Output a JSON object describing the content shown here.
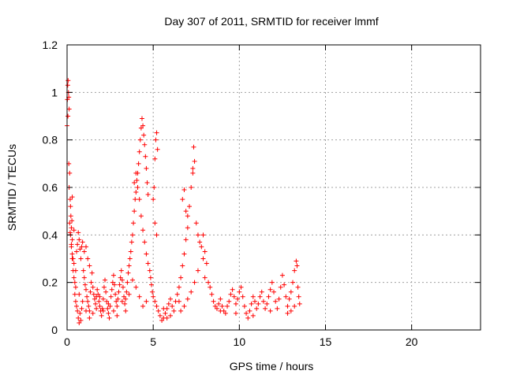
{
  "chart_data": {
    "type": "scatter",
    "title": "Day 307 of 2011, SRMTID for receiver lmmf",
    "xlabel": "GPS time / hours",
    "ylabel": "SRMTID / TECUs",
    "xlim": [
      0,
      24
    ],
    "ylim": [
      0,
      1.2
    ],
    "xticks": [
      0,
      5,
      10,
      15,
      20
    ],
    "yticks": [
      0,
      0.2,
      0.4,
      0.6,
      0.8,
      1,
      1.2
    ],
    "xtick_labels": [
      "0",
      "5",
      "10",
      "15",
      "20"
    ],
    "ytick_labels": [
      "0",
      "0.2",
      "0.4",
      "0.6",
      "0.8",
      "1",
      "1.2"
    ],
    "grid": true,
    "marker": "plus",
    "color": "#ff0000",
    "points": [
      [
        0.0,
        0.86
      ],
      [
        0.02,
        0.97
      ],
      [
        0.04,
        1.03
      ],
      [
        0.06,
        1.05
      ],
      [
        0.08,
        1.0
      ],
      [
        0.1,
        0.98
      ],
      [
        0.12,
        0.93
      ],
      [
        0.05,
        0.9
      ],
      [
        0.1,
        0.7
      ],
      [
        0.15,
        0.66
      ],
      [
        0.12,
        0.6
      ],
      [
        0.18,
        0.55
      ],
      [
        0.2,
        0.52
      ],
      [
        0.22,
        0.48
      ],
      [
        0.15,
        0.45
      ],
      [
        0.25,
        0.43
      ],
      [
        0.2,
        0.4
      ],
      [
        0.3,
        0.38
      ],
      [
        0.25,
        0.35
      ],
      [
        0.3,
        0.32
      ],
      [
        0.35,
        0.3
      ],
      [
        0.4,
        0.28
      ],
      [
        0.18,
        0.41
      ],
      [
        0.28,
        0.46
      ],
      [
        0.3,
        0.56
      ],
      [
        0.35,
        0.25
      ],
      [
        0.4,
        0.22
      ],
      [
        0.45,
        0.2
      ],
      [
        0.5,
        0.18
      ],
      [
        0.45,
        0.15
      ],
      [
        0.5,
        0.12
      ],
      [
        0.55,
        0.1
      ],
      [
        0.6,
        0.08
      ],
      [
        0.65,
        0.05
      ],
      [
        0.7,
        0.03
      ],
      [
        0.8,
        0.04
      ],
      [
        0.75,
        0.07
      ],
      [
        0.85,
        0.09
      ],
      [
        0.55,
        0.33
      ],
      [
        0.6,
        0.36
      ],
      [
        0.65,
        0.41
      ],
      [
        0.7,
        0.38
      ],
      [
        0.75,
        0.34
      ],
      [
        0.8,
        0.3
      ],
      [
        0.85,
        0.35
      ],
      [
        0.9,
        0.37
      ],
      [
        1.0,
        0.33
      ],
      [
        1.1,
        0.35
      ],
      [
        1.2,
        0.3
      ],
      [
        1.3,
        0.27
      ],
      [
        0.95,
        0.25
      ],
      [
        1.0,
        0.22
      ],
      [
        1.05,
        0.19
      ],
      [
        1.1,
        0.17
      ],
      [
        1.15,
        0.14
      ],
      [
        1.2,
        0.12
      ],
      [
        1.25,
        0.1
      ],
      [
        1.3,
        0.08
      ],
      [
        1.35,
        0.16
      ],
      [
        1.4,
        0.2
      ],
      [
        1.45,
        0.24
      ],
      [
        1.5,
        0.18
      ],
      [
        1.55,
        0.15
      ],
      [
        1.6,
        0.13
      ],
      [
        1.65,
        0.11
      ],
      [
        1.7,
        0.14
      ],
      [
        1.75,
        0.17
      ],
      [
        1.8,
        0.15
      ],
      [
        1.85,
        0.12
      ],
      [
        1.9,
        0.1
      ],
      [
        1.95,
        0.08
      ],
      [
        2.0,
        0.06
      ],
      [
        2.05,
        0.09
      ],
      [
        2.1,
        0.13
      ],
      [
        2.15,
        0.18
      ],
      [
        2.2,
        0.21
      ],
      [
        2.25,
        0.16
      ],
      [
        2.3,
        0.12
      ],
      [
        2.35,
        0.09
      ],
      [
        2.4,
        0.07
      ],
      [
        2.45,
        0.05
      ],
      [
        2.5,
        0.1
      ],
      [
        2.55,
        0.14
      ],
      [
        2.6,
        0.17
      ],
      [
        2.65,
        0.2
      ],
      [
        2.7,
        0.23
      ],
      [
        2.75,
        0.19
      ],
      [
        2.8,
        0.15
      ],
      [
        2.85,
        0.12
      ],
      [
        2.9,
        0.1
      ],
      [
        2.95,
        0.13
      ],
      [
        3.0,
        0.16
      ],
      [
        3.05,
        0.19
      ],
      [
        3.1,
        0.22
      ],
      [
        3.15,
        0.25
      ],
      [
        3.2,
        0.21
      ],
      [
        3.25,
        0.18
      ],
      [
        3.3,
        0.14
      ],
      [
        3.35,
        0.11
      ],
      [
        3.4,
        0.13
      ],
      [
        3.45,
        0.16
      ],
      [
        3.5,
        0.2
      ],
      [
        3.55,
        0.24
      ],
      [
        3.6,
        0.27
      ],
      [
        3.65,
        0.3
      ],
      [
        3.7,
        0.33
      ],
      [
        3.75,
        0.37
      ],
      [
        3.8,
        0.4
      ],
      [
        3.85,
        0.45
      ],
      [
        3.9,
        0.5
      ],
      [
        3.95,
        0.55
      ],
      [
        4.0,
        0.58
      ],
      [
        4.05,
        0.63
      ],
      [
        4.1,
        0.66
      ],
      [
        4.15,
        0.7
      ],
      [
        4.2,
        0.75
      ],
      [
        4.25,
        0.8
      ],
      [
        4.3,
        0.85
      ],
      [
        4.35,
        0.89
      ],
      [
        4.4,
        0.86
      ],
      [
        4.45,
        0.82
      ],
      [
        4.5,
        0.78
      ],
      [
        4.55,
        0.73
      ],
      [
        4.6,
        0.68
      ],
      [
        4.65,
        0.62
      ],
      [
        4.7,
        0.57
      ],
      [
        3.9,
        0.62
      ],
      [
        4.0,
        0.66
      ],
      [
        4.1,
        0.6
      ],
      [
        4.2,
        0.55
      ],
      [
        4.3,
        0.48
      ],
      [
        4.4,
        0.42
      ],
      [
        4.5,
        0.37
      ],
      [
        4.6,
        0.32
      ],
      [
        4.7,
        0.28
      ],
      [
        4.8,
        0.25
      ],
      [
        4.85,
        0.22
      ],
      [
        4.9,
        0.19
      ],
      [
        4.95,
        0.16
      ],
      [
        5.0,
        0.55
      ],
      [
        5.05,
        0.6
      ],
      [
        5.1,
        0.72
      ],
      [
        5.15,
        0.8
      ],
      [
        5.2,
        0.83
      ],
      [
        5.25,
        0.76
      ],
      [
        5.1,
        0.45
      ],
      [
        5.2,
        0.4
      ],
      [
        5.0,
        0.14
      ],
      [
        5.1,
        0.12
      ],
      [
        5.2,
        0.1
      ],
      [
        5.3,
        0.08
      ],
      [
        5.4,
        0.06
      ],
      [
        5.5,
        0.04
      ],
      [
        5.6,
        0.05
      ],
      [
        5.7,
        0.07
      ],
      [
        5.8,
        0.09
      ],
      [
        5.9,
        0.11
      ],
      [
        6.0,
        0.13
      ],
      [
        6.1,
        0.1
      ],
      [
        6.2,
        0.08
      ],
      [
        6.3,
        0.12
      ],
      [
        6.4,
        0.15
      ],
      [
        6.5,
        0.18
      ],
      [
        6.6,
        0.22
      ],
      [
        6.7,
        0.27
      ],
      [
        6.8,
        0.32
      ],
      [
        6.9,
        0.38
      ],
      [
        7.0,
        0.43
      ],
      [
        6.7,
        0.55
      ],
      [
        6.8,
        0.59
      ],
      [
        6.9,
        0.5
      ],
      [
        7.0,
        0.48
      ],
      [
        7.1,
        0.52
      ],
      [
        7.2,
        0.6
      ],
      [
        7.3,
        0.66
      ],
      [
        7.4,
        0.71
      ],
      [
        7.35,
        0.77
      ],
      [
        7.3,
        0.68
      ],
      [
        7.5,
        0.45
      ],
      [
        7.6,
        0.4
      ],
      [
        7.7,
        0.37
      ],
      [
        7.8,
        0.35
      ],
      [
        7.9,
        0.4
      ],
      [
        8.0,
        0.33
      ],
      [
        8.1,
        0.28
      ],
      [
        8.0,
        0.22
      ],
      [
        8.2,
        0.2
      ],
      [
        8.3,
        0.18
      ],
      [
        8.4,
        0.15
      ],
      [
        8.5,
        0.12
      ],
      [
        8.6,
        0.1
      ],
      [
        8.7,
        0.09
      ],
      [
        8.8,
        0.11
      ],
      [
        8.9,
        0.13
      ],
      [
        9.0,
        0.1
      ],
      [
        9.1,
        0.08
      ],
      [
        9.2,
        0.07
      ],
      [
        9.3,
        0.1
      ],
      [
        9.4,
        0.12
      ],
      [
        9.5,
        0.15
      ],
      [
        9.6,
        0.17
      ],
      [
        9.7,
        0.14
      ],
      [
        9.8,
        0.11
      ],
      [
        9.9,
        0.13
      ],
      [
        10.0,
        0.16
      ],
      [
        10.1,
        0.18
      ],
      [
        10.2,
        0.14
      ],
      [
        10.3,
        0.1
      ],
      [
        10.4,
        0.07
      ],
      [
        10.5,
        0.05
      ],
      [
        10.6,
        0.08
      ],
      [
        10.7,
        0.11
      ],
      [
        10.8,
        0.14
      ],
      [
        10.9,
        0.12
      ],
      [
        11.0,
        0.09
      ],
      [
        11.1,
        0.11
      ],
      [
        11.2,
        0.14
      ],
      [
        11.3,
        0.16
      ],
      [
        11.4,
        0.12
      ],
      [
        11.5,
        0.09
      ],
      [
        11.6,
        0.11
      ],
      [
        11.7,
        0.14
      ],
      [
        11.8,
        0.17
      ],
      [
        11.9,
        0.2
      ],
      [
        12.0,
        0.16
      ],
      [
        12.1,
        0.12
      ],
      [
        12.2,
        0.09
      ],
      [
        12.3,
        0.13
      ],
      [
        12.4,
        0.18
      ],
      [
        12.5,
        0.23
      ],
      [
        12.6,
        0.19
      ],
      [
        12.7,
        0.14
      ],
      [
        12.8,
        0.1
      ],
      [
        12.9,
        0.13
      ],
      [
        13.0,
        0.16
      ],
      [
        13.1,
        0.2
      ],
      [
        13.2,
        0.25
      ],
      [
        13.3,
        0.29
      ],
      [
        13.35,
        0.27
      ],
      [
        13.4,
        0.18
      ],
      [
        13.45,
        0.14
      ],
      [
        13.5,
        0.11
      ],
      [
        13.2,
        0.1
      ],
      [
        13.0,
        0.08
      ],
      [
        12.8,
        0.07
      ],
      [
        11.8,
        0.08
      ],
      [
        10.8,
        0.06
      ],
      [
        9.8,
        0.07
      ],
      [
        8.9,
        0.08
      ],
      [
        7.9,
        0.3
      ],
      [
        7.6,
        0.25
      ],
      [
        7.4,
        0.2
      ],
      [
        7.2,
        0.16
      ],
      [
        7.0,
        0.13
      ],
      [
        6.8,
        0.1
      ],
      [
        6.6,
        0.08
      ],
      [
        6.5,
        0.12
      ],
      [
        6.0,
        0.06
      ],
      [
        5.8,
        0.05
      ],
      [
        5.6,
        0.09
      ],
      [
        4.6,
        0.12
      ],
      [
        4.4,
        0.1
      ],
      [
        4.2,
        0.14
      ],
      [
        4.0,
        0.18
      ],
      [
        3.8,
        0.21
      ],
      [
        3.6,
        0.15
      ],
      [
        3.4,
        0.08
      ],
      [
        3.2,
        0.12
      ],
      [
        2.9,
        0.06
      ],
      [
        2.7,
        0.08
      ],
      [
        2.4,
        0.11
      ],
      [
        2.1,
        0.08
      ],
      [
        1.9,
        0.14
      ],
      [
        1.7,
        0.09
      ],
      [
        1.5,
        0.07
      ],
      [
        1.3,
        0.05
      ],
      [
        1.1,
        0.08
      ],
      [
        0.9,
        0.12
      ],
      [
        0.7,
        0.15
      ],
      [
        0.5,
        0.25
      ],
      [
        0.3,
        0.3
      ],
      [
        0.25,
        0.36
      ],
      [
        0.4,
        0.42
      ]
    ]
  }
}
